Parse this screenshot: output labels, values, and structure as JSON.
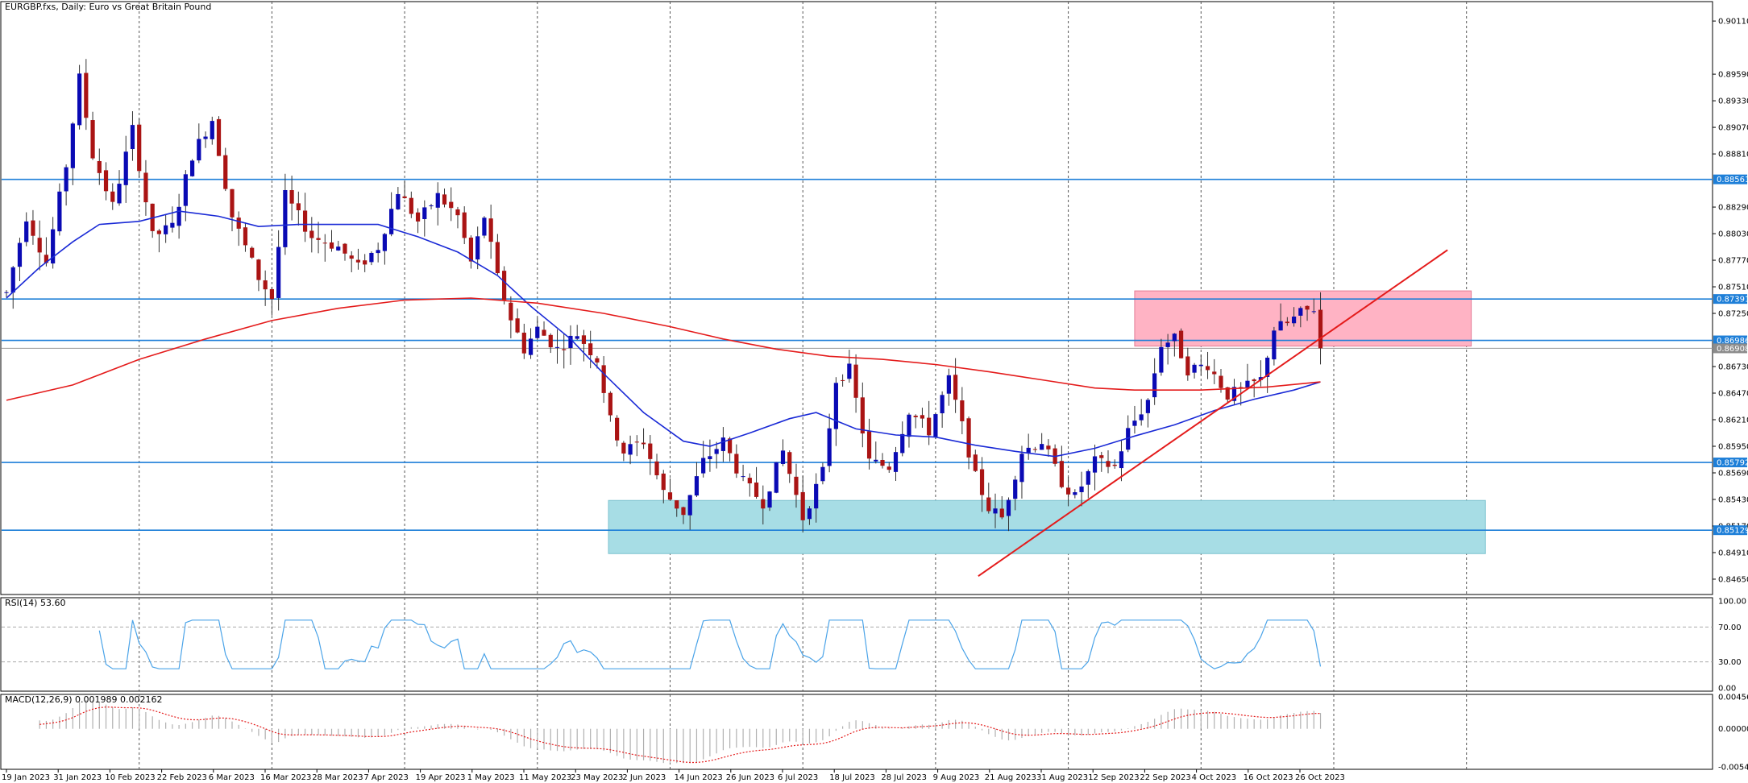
{
  "window": {
    "title": "EURGBP.fxs, Daily:  Euro vs Great Britain Pound"
  },
  "indicators": {
    "rsi_label": "RSI(14) 53.60",
    "macd_label": "MACD(12,26,9) 0.001989 0.002162"
  },
  "colors": {
    "bull_candle": "#0a0ab4",
    "bear_candle": "#aa1414",
    "ma_fast": "#1a2ad6",
    "ma_slow": "#e41b1b",
    "level_line": "#1e7fd8",
    "resistance_zone": "#ffb3c4",
    "support_zone": "#a7dde5",
    "trendline": "#e41b1b",
    "rsi_line": "#4aa3e8",
    "macd_hist": "#b0b0b0",
    "macd_signal": "#e41b1b"
  },
  "chart_data": [
    {
      "type": "candlestick",
      "symbol": "EURGBP.fxs",
      "timeframe": "Daily",
      "x_tick_labels": [
        "19 Jan 2023",
        "31 Jan 2023",
        "10 Feb 2023",
        "22 Feb 2023",
        "6 Mar 2023",
        "16 Mar 2023",
        "28 Mar 2023",
        "7 Apr 2023",
        "19 Apr 2023",
        "1 May 2023",
        "11 May 2023",
        "23 May 2023",
        "2 Jun 2023",
        "14 Jun 2023",
        "26 Jun 2023",
        "6 Jul 2023",
        "18 Jul 2023",
        "28 Jul 2023",
        "9 Aug 2023",
        "21 Aug 2023",
        "31 Aug 2023",
        "12 Sep 2023",
        "22 Sep 2023",
        "4 Oct 2023",
        "16 Oct 2023",
        "26 Oct 2023"
      ],
      "y_tick_labels": [
        "0.90110",
        "0.89590",
        "0.89330",
        "0.89070",
        "0.88810",
        "0.88290",
        "0.88030",
        "0.87770",
        "0.87510",
        "0.87250",
        "0.86730",
        "0.86470",
        "0.86210",
        "0.85950",
        "0.85690",
        "0.85430",
        "0.85170",
        "0.84910",
        "0.84650"
      ],
      "y_ticks": [
        0.9011,
        0.8959,
        0.8933,
        0.8907,
        0.8881,
        0.8829,
        0.8803,
        0.8777,
        0.8751,
        0.8725,
        0.8673,
        0.8647,
        0.8621,
        0.8595,
        0.8569,
        0.8543,
        0.8517,
        0.8491,
        0.8465
      ],
      "ylim": [
        0.845,
        0.903
      ],
      "horizontal_levels": [
        {
          "value": 0.88561,
          "label": "0.88561"
        },
        {
          "value": 0.87391,
          "label": "0.87391"
        },
        {
          "value": 0.86986,
          "label": "0.86986"
        },
        {
          "value": 0.85792,
          "label": "0.85792"
        },
        {
          "value": 0.85129,
          "label": "0.85129"
        }
      ],
      "current_price": {
        "value": 0.86908,
        "label": "0.86908"
      },
      "zones": [
        {
          "name": "resistance",
          "from_date": "2023-09-11",
          "to_date": "2023-11-21",
          "low": 0.8693,
          "high": 0.8747
        },
        {
          "name": "support",
          "from_date": "2023-05-23",
          "to_date": "2023-11-24",
          "low": 0.849,
          "high": 0.8542
        }
      ],
      "trendline": {
        "start_date": "2023-08-09",
        "start_value": 0.8468,
        "end_date": "2023-11-16",
        "end_value": 0.8787
      },
      "moving_averages": [
        {
          "role": "fast",
          "points": [
            [
              0,
              0.874
            ],
            [
              5,
              0.877
            ],
            [
              10,
              0.8795
            ],
            [
              14,
              0.8812
            ],
            [
              20,
              0.8815
            ],
            [
              26,
              0.8825
            ],
            [
              32,
              0.882
            ],
            [
              38,
              0.881
            ],
            [
              44,
              0.8812
            ],
            [
              50,
              0.8812
            ],
            [
              56,
              0.8812
            ],
            [
              62,
              0.88
            ],
            [
              68,
              0.8785
            ],
            [
              74,
              0.8762
            ],
            [
              79,
              0.8732
            ],
            [
              85,
              0.87
            ],
            [
              90,
              0.8666
            ],
            [
              96,
              0.8628
            ],
            [
              102,
              0.86
            ],
            [
              106,
              0.8595
            ],
            [
              112,
              0.8608
            ],
            [
              118,
              0.8622
            ],
            [
              122,
              0.8628
            ],
            [
              128,
              0.8612
            ],
            [
              134,
              0.8606
            ],
            [
              140,
              0.8604
            ],
            [
              146,
              0.8596
            ],
            [
              152,
              0.859
            ],
            [
              158,
              0.8585
            ],
            [
              164,
              0.8593
            ],
            [
              170,
              0.8605
            ],
            [
              176,
              0.8616
            ],
            [
              182,
              0.863
            ],
            [
              188,
              0.8641
            ],
            [
              194,
              0.865
            ],
            [
              198,
              0.8658
            ]
          ]
        },
        {
          "role": "slow",
          "points": [
            [
              0,
              0.864
            ],
            [
              10,
              0.8655
            ],
            [
              20,
              0.868
            ],
            [
              30,
              0.87
            ],
            [
              40,
              0.8718
            ],
            [
              50,
              0.873
            ],
            [
              60,
              0.8738
            ],
            [
              70,
              0.874
            ],
            [
              80,
              0.8735
            ],
            [
              90,
              0.8725
            ],
            [
              100,
              0.8712
            ],
            [
              108,
              0.87
            ],
            [
              116,
              0.869
            ],
            [
              124,
              0.8683
            ],
            [
              132,
              0.868
            ],
            [
              140,
              0.8675
            ],
            [
              148,
              0.8668
            ],
            [
              156,
              0.866
            ],
            [
              164,
              0.8652
            ],
            [
              170,
              0.865
            ],
            [
              180,
              0.865
            ],
            [
              190,
              0.8653
            ],
            [
              198,
              0.8658
            ]
          ]
        }
      ],
      "anchors": [
        {
          "i": 0,
          "v": 0.8745
        },
        {
          "i": 3,
          "v": 0.882
        },
        {
          "i": 6,
          "v": 0.8775
        },
        {
          "i": 9,
          "v": 0.887
        },
        {
          "i": 11,
          "v": 0.8955
        },
        {
          "i": 13,
          "v": 0.888
        },
        {
          "i": 16,
          "v": 0.883
        },
        {
          "i": 19,
          "v": 0.8905
        },
        {
          "i": 22,
          "v": 0.88
        },
        {
          "i": 25,
          "v": 0.881
        },
        {
          "i": 28,
          "v": 0.888
        },
        {
          "i": 31,
          "v": 0.8915
        },
        {
          "i": 34,
          "v": 0.882
        },
        {
          "i": 38,
          "v": 0.876
        },
        {
          "i": 40,
          "v": 0.874
        },
        {
          "i": 42,
          "v": 0.884
        },
        {
          "i": 46,
          "v": 0.88
        },
        {
          "i": 50,
          "v": 0.879
        },
        {
          "i": 53,
          "v": 0.877
        },
        {
          "i": 56,
          "v": 0.879
        },
        {
          "i": 59,
          "v": 0.8845
        },
        {
          "i": 62,
          "v": 0.8815
        },
        {
          "i": 65,
          "v": 0.884
        },
        {
          "i": 68,
          "v": 0.882
        },
        {
          "i": 70,
          "v": 0.8775
        },
        {
          "i": 72,
          "v": 0.882
        },
        {
          "i": 74,
          "v": 0.876
        },
        {
          "i": 76,
          "v": 0.872
        },
        {
          "i": 78,
          "v": 0.869
        },
        {
          "i": 80,
          "v": 0.871
        },
        {
          "i": 83,
          "v": 0.869
        },
        {
          "i": 86,
          "v": 0.8705
        },
        {
          "i": 89,
          "v": 0.868
        },
        {
          "i": 91,
          "v": 0.862
        },
        {
          "i": 93,
          "v": 0.859
        },
        {
          "i": 96,
          "v": 0.86
        },
        {
          "i": 99,
          "v": 0.855
        },
        {
          "i": 102,
          "v": 0.853
        },
        {
          "i": 105,
          "v": 0.858
        },
        {
          "i": 108,
          "v": 0.86
        },
        {
          "i": 111,
          "v": 0.856
        },
        {
          "i": 114,
          "v": 0.854
        },
        {
          "i": 117,
          "v": 0.859
        },
        {
          "i": 120,
          "v": 0.8525
        },
        {
          "i": 123,
          "v": 0.857
        },
        {
          "i": 125,
          "v": 0.866
        },
        {
          "i": 127,
          "v": 0.867
        },
        {
          "i": 130,
          "v": 0.858
        },
        {
          "i": 133,
          "v": 0.8575
        },
        {
          "i": 136,
          "v": 0.863
        },
        {
          "i": 139,
          "v": 0.861
        },
        {
          "i": 142,
          "v": 0.866
        },
        {
          "i": 144,
          "v": 0.8615
        },
        {
          "i": 146,
          "v": 0.8565
        },
        {
          "i": 148,
          "v": 0.8535
        },
        {
          "i": 150,
          "v": 0.8525
        },
        {
          "i": 153,
          "v": 0.859
        },
        {
          "i": 156,
          "v": 0.86
        },
        {
          "i": 159,
          "v": 0.856
        },
        {
          "i": 161,
          "v": 0.8545
        },
        {
          "i": 164,
          "v": 0.858
        },
        {
          "i": 167,
          "v": 0.8575
        },
        {
          "i": 169,
          "v": 0.861
        },
        {
          "i": 172,
          "v": 0.864
        },
        {
          "i": 174,
          "v": 0.8695
        },
        {
          "i": 176,
          "v": 0.87
        },
        {
          "i": 178,
          "v": 0.867
        },
        {
          "i": 181,
          "v": 0.8675
        },
        {
          "i": 184,
          "v": 0.8645
        },
        {
          "i": 186,
          "v": 0.865
        },
        {
          "i": 189,
          "v": 0.866
        },
        {
          "i": 191,
          "v": 0.871
        },
        {
          "i": 193,
          "v": 0.8715
        },
        {
          "i": 195,
          "v": 0.8725
        },
        {
          "i": 197,
          "v": 0.873
        },
        {
          "i": 198,
          "v": 0.8691
        }
      ],
      "n_bars": 199
    },
    {
      "type": "line",
      "name": "RSI(14)",
      "value": 53.6,
      "y_tick_labels": [
        "100.00",
        "70.00",
        "30.00",
        "0.00"
      ],
      "levels": [
        100,
        70,
        30,
        0
      ],
      "ylim": [
        0,
        100
      ]
    },
    {
      "type": "bar",
      "name": "MACD(12,26,9)",
      "main": 0.001989,
      "signal": 0.002162,
      "y_tick_labels": [
        "0.004566",
        "0.000000",
        "-0.005436"
      ],
      "ylim": [
        -0.005436,
        0.004566
      ]
    }
  ]
}
